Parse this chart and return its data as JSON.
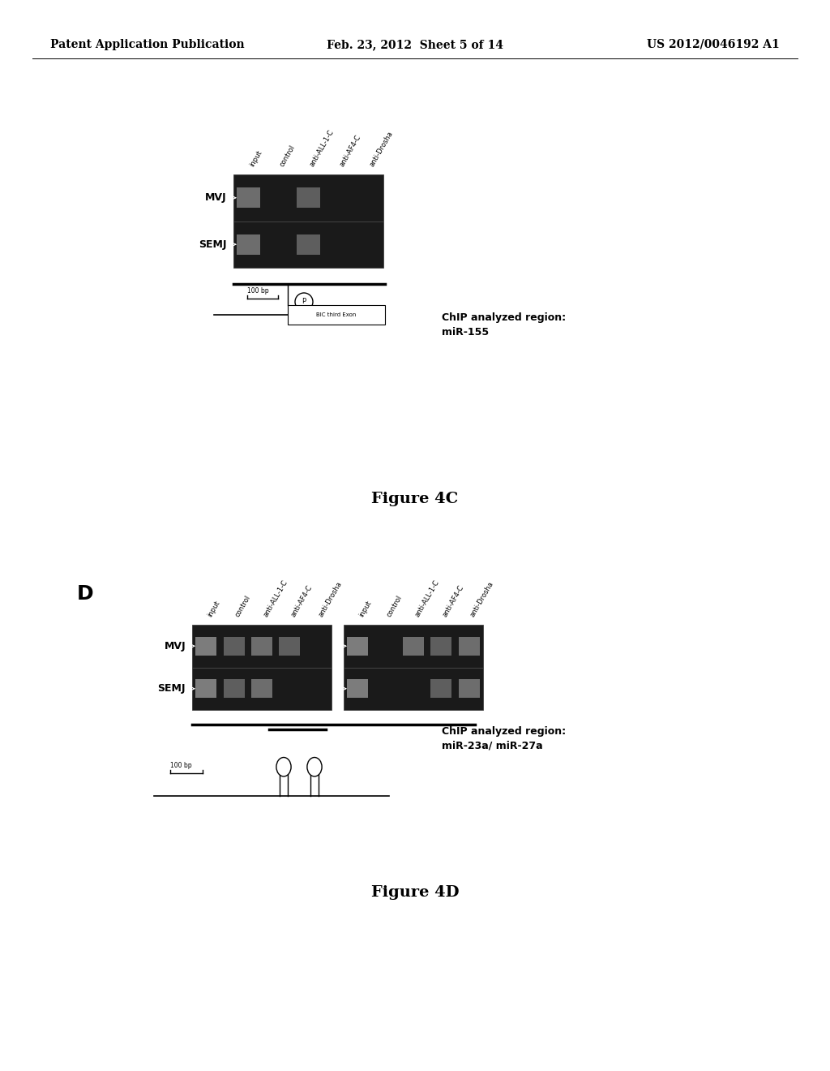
{
  "bg_color": "#ffffff",
  "header_left": "Patent Application Publication",
  "header_center": "Feb. 23, 2012  Sheet 5 of 14",
  "header_right": "US 2012/0046192 A1",
  "fig4c_label": "Figure 4C",
  "fig4d_label": "Figure 4D",
  "panel_d_label": "D",
  "chip_text_4c": "ChIP analyzed region:\nmiR-155",
  "chip_text_4d": "ChIP analyzed region:\nmiR-23a/ miR-27a",
  "col_labels_4c": [
    "input",
    "control",
    "anti-ALL-1-C",
    "anti-AF4-C",
    "anti-Drosha"
  ],
  "col_labels_4d_left": [
    "input",
    "control",
    "anti-ALL-1-C",
    "anti-AF4-C",
    "anti-Drosha"
  ],
  "col_labels_4d_right": [
    "input",
    "control",
    "anti-ALL-1-C",
    "anti-AF4-C",
    "anti-Drosha"
  ],
  "header_fontsize": 10,
  "fontsize_chip": 9,
  "fontsize_fig": 14,
  "fontsize_col": 6,
  "fontsize_row_label": 9,
  "fontsize_panel": 18
}
